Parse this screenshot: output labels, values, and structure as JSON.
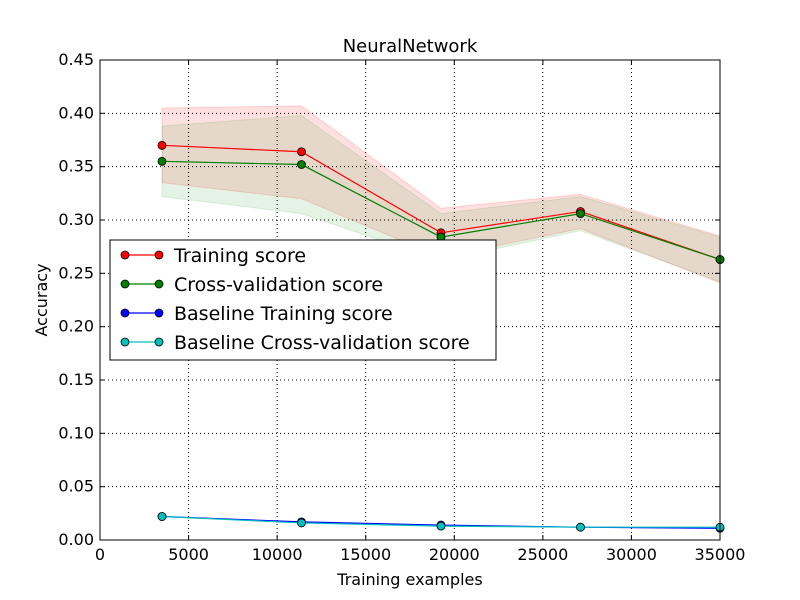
{
  "chart_data": {
    "type": "line",
    "title": "NeuralNetwork",
    "xlabel": "Training examples",
    "ylabel": "Accuracy",
    "xlim": [
      0,
      35000
    ],
    "ylim": [
      0.0,
      0.45
    ],
    "grid": true,
    "legend_position": "center-left",
    "x_ticks": [
      0,
      5000,
      10000,
      15000,
      20000,
      25000,
      30000,
      35000
    ],
    "x_tick_labels": [
      "0",
      "5000",
      "10000",
      "15000",
      "20000",
      "25000",
      "30000",
      "35000"
    ],
    "y_ticks": [
      0.0,
      0.05,
      0.1,
      0.15,
      0.2,
      0.25,
      0.3,
      0.35,
      0.4,
      0.45
    ],
    "y_tick_labels": [
      "0.00",
      "0.05",
      "0.10",
      "0.15",
      "0.20",
      "0.25",
      "0.30",
      "0.35",
      "0.40",
      "0.45"
    ],
    "x": [
      3500,
      11375,
      19250,
      27125,
      35000
    ],
    "series": [
      {
        "name": "Training score",
        "color": "#ff0000",
        "values": [
          0.37,
          0.364,
          0.288,
          0.308,
          0.263
        ],
        "band_lower": [
          0.335,
          0.32,
          0.265,
          0.292,
          0.241
        ],
        "band_upper": [
          0.405,
          0.407,
          0.311,
          0.324,
          0.285
        ],
        "band_color": "#ff0000"
      },
      {
        "name": "Cross-validation score",
        "color": "#007f00",
        "values": [
          0.355,
          0.352,
          0.284,
          0.306,
          0.263
        ],
        "band_lower": [
          0.322,
          0.306,
          0.262,
          0.29,
          0.242
        ],
        "band_upper": [
          0.388,
          0.398,
          0.306,
          0.322,
          0.284
        ],
        "band_color": "#2ca02c"
      },
      {
        "name": "Baseline Training score",
        "color": "#0000ff",
        "values": [
          0.022,
          0.017,
          0.014,
          0.012,
          0.011
        ]
      },
      {
        "name": "Baseline Cross-validation score",
        "color": "#00bfbf",
        "values": [
          0.022,
          0.016,
          0.013,
          0.012,
          0.012
        ]
      }
    ]
  }
}
